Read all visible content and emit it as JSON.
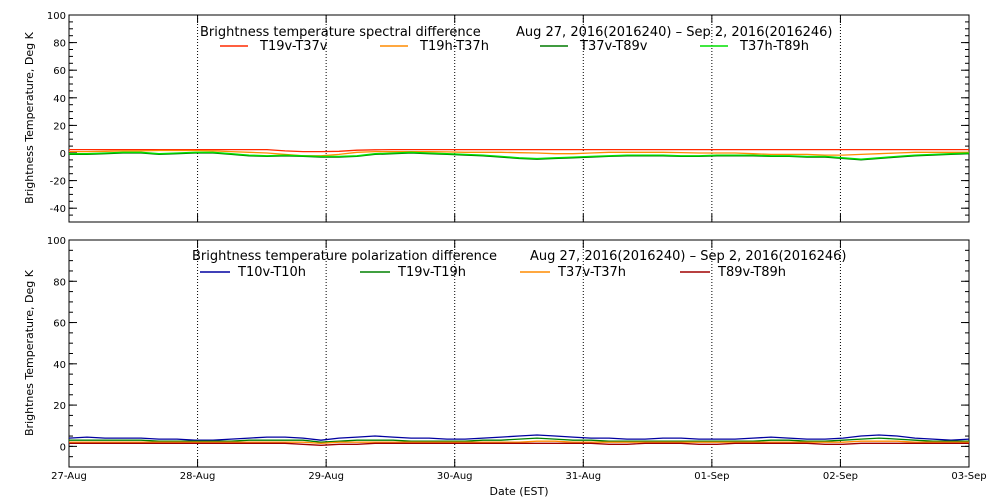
{
  "chart_data": [
    {
      "type": "line",
      "title": "Brightness temperature spectral difference",
      "date_range": "Aug 27, 2016(2016240) – Sep  2, 2016(2016246)",
      "ylabel": "Brightness Temperature, Deg K",
      "ylim": [
        -50,
        100
      ],
      "yticks": [
        -40,
        -20,
        0,
        20,
        40,
        60,
        80,
        100
      ],
      "series": [
        {
          "name": "T19v-T37v",
          "color": "#ff2a00",
          "values": [
            2.5,
            2.5,
            2.5,
            2.5,
            2.5,
            2.5,
            2.5,
            2.5,
            2.5,
            2.5,
            2.5,
            2.5,
            1.5,
            1,
            1,
            1.2,
            2,
            2.3,
            2.5,
            2.5,
            2.5,
            2.5,
            2.5,
            2.5,
            2.5,
            2.5,
            2.5,
            2.5,
            2.5,
            2.5,
            2.5,
            2.5,
            2.5,
            2.5,
            2.5,
            2.5,
            2.5,
            2.5,
            2.5,
            2.5,
            2.5,
            2.5,
            2.5,
            2.5,
            2.5,
            2.5,
            2.5,
            2.5,
            2.5,
            2.5,
            2.5
          ]
        },
        {
          "name": "T19h-T37h",
          "color": "#ff8c00",
          "values": [
            1,
            1,
            1.2,
            1.5,
            1.5,
            1.8,
            1.8,
            1.8,
            1.5,
            1,
            0.5,
            0,
            -1,
            -2,
            -2,
            -1,
            0.5,
            1,
            1,
            1,
            1,
            0.8,
            0.5,
            0.5,
            0.5,
            0.2,
            0,
            -0.5,
            -0.5,
            0,
            0.5,
            0.5,
            0.5,
            0.5,
            0.3,
            0,
            0,
            0,
            -0.5,
            -1,
            -1,
            -1,
            -1.5,
            -1.5,
            -1,
            -0.5,
            0,
            0.5,
            0.5,
            0.5,
            0.5
          ]
        },
        {
          "name": "T37v-T89v",
          "color": "#007a00",
          "values": [
            -1,
            -1,
            -0.5,
            0,
            0,
            -1,
            -0.5,
            0,
            0,
            -1,
            -2,
            -2.5,
            -2,
            -2.5,
            -3,
            -3,
            -2.5,
            -1,
            -0.5,
            0,
            -0.5,
            -1,
            -1.5,
            -2,
            -3,
            -4,
            -4.5,
            -4,
            -3.5,
            -3,
            -2.5,
            -2,
            -2,
            -2,
            -2.5,
            -2.5,
            -2,
            -2,
            -2,
            -2.5,
            -2.5,
            -3,
            -3,
            -4,
            -5,
            -4,
            -3,
            -2,
            -1.5,
            -1,
            -0.5
          ]
        },
        {
          "name": "T37h-T89h",
          "color": "#00e000",
          "values": [
            -0.5,
            -0.5,
            0,
            0.5,
            0.5,
            -0.5,
            0,
            0.5,
            0.5,
            -0.5,
            -1.5,
            -2,
            -1.5,
            -2,
            -2.5,
            -2.5,
            -2,
            -0.5,
            0,
            0.5,
            0,
            -0.5,
            -1,
            -1.5,
            -2.5,
            -3.5,
            -4,
            -3.5,
            -3,
            -2.5,
            -2,
            -1.5,
            -1.5,
            -1.5,
            -2,
            -2,
            -1.5,
            -1.5,
            -1.5,
            -2,
            -2,
            -2.5,
            -2.5,
            -3.5,
            -4.5,
            -3.5,
            -2.5,
            -1.5,
            -1,
            -0.5,
            0
          ]
        }
      ]
    },
    {
      "type": "line",
      "title": "Brightness temperature polarization difference",
      "date_range": "Aug 27, 2016(2016240) – Sep  2, 2016(2016246)",
      "ylabel": "Brightnes Temperature, Deg K",
      "xlabel": "Date (EST)",
      "ylim": [
        -10,
        100
      ],
      "yticks": [
        0,
        20,
        40,
        60,
        80,
        100
      ],
      "series": [
        {
          "name": "T10v-T10h",
          "color": "#0000a0",
          "values": [
            4,
            4.5,
            4,
            4,
            4,
            3.5,
            3.5,
            3,
            3,
            3.5,
            4,
            4.5,
            4.5,
            4,
            3,
            4,
            4.5,
            5,
            4.5,
            4,
            4,
            3.5,
            3.5,
            4,
            4.5,
            5,
            5.5,
            5,
            4.5,
            4,
            4,
            3.5,
            3.5,
            4,
            4,
            3.5,
            3.5,
            3.5,
            4,
            4.5,
            4,
            3.5,
            3.5,
            4,
            5,
            5.5,
            5,
            4,
            3.5,
            3,
            3.5
          ]
        },
        {
          "name": "T19v-T19h",
          "color": "#008000",
          "values": [
            3,
            3,
            3,
            3,
            3,
            2.5,
            2.5,
            2.5,
            2.5,
            2.5,
            3,
            3,
            3,
            3,
            2,
            2.5,
            3,
            3,
            3,
            2.5,
            2.5,
            2.5,
            2.5,
            3,
            3,
            3.5,
            4,
            3.5,
            3,
            3,
            2.5,
            2.5,
            2.5,
            2.5,
            2.5,
            2.5,
            2.5,
            2.5,
            2.5,
            3,
            3,
            2.5,
            2.5,
            3,
            3.5,
            4,
            3.5,
            3,
            2.5,
            2.5,
            2.5
          ]
        },
        {
          "name": "T37v-T37h",
          "color": "#ff8c00",
          "values": [
            2,
            2,
            2,
            2,
            2,
            2,
            2,
            2,
            2,
            2,
            2,
            2,
            2,
            2,
            1.5,
            2,
            2,
            2,
            2,
            2,
            2,
            2,
            2,
            2,
            2,
            2,
            2.5,
            2.5,
            2,
            2,
            2,
            2,
            2,
            2,
            2,
            2,
            2,
            2,
            2,
            2,
            2,
            2,
            2,
            2,
            2.5,
            2.5,
            2.5,
            2,
            2,
            2,
            2
          ]
        },
        {
          "name": "T89v-T89h",
          "color": "#a00000",
          "values": [
            1.5,
            1.5,
            1.5,
            1.5,
            1.5,
            1.5,
            1.5,
            1.5,
            1.5,
            1.5,
            1.5,
            1.5,
            1.5,
            1,
            0.5,
            1,
            1,
            1.5,
            1.5,
            1.5,
            1.5,
            1.5,
            1.5,
            1.5,
            1.5,
            1.5,
            1.5,
            1.5,
            1.5,
            1.5,
            1,
            1,
            1.5,
            1.5,
            1.5,
            1,
            1,
            1.5,
            1.5,
            1.5,
            1.5,
            1.5,
            1,
            1,
            1.5,
            1.5,
            1.5,
            1.5,
            1.5,
            1.5,
            1.5
          ]
        }
      ]
    }
  ],
  "x_axis": {
    "ticks": [
      "27-Aug",
      "28-Aug",
      "29-Aug",
      "30-Aug",
      "31-Aug",
      "01-Sep",
      "02-Sep",
      "03-Sep"
    ],
    "label": "Date (EST)"
  }
}
